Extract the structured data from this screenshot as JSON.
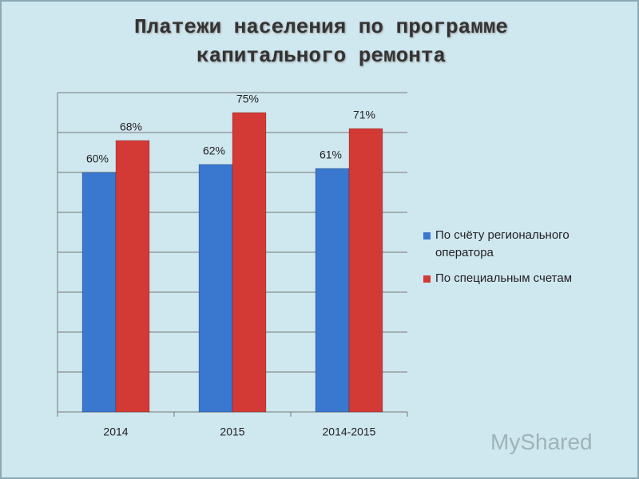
{
  "chart_data": {
    "type": "bar",
    "title": "Платежи населения по программе капитального ремонта",
    "categories": [
      "2014",
      "2015",
      "2014-2015"
    ],
    "series": [
      {
        "name": "По счёту регионального оператора",
        "color": "#3a77cf",
        "values": [
          60,
          62,
          61
        ],
        "value_labels": [
          "60%",
          "62%",
          "61%"
        ]
      },
      {
        "name": "По специальным счетам",
        "color": "#d43a35",
        "values": [
          68,
          75,
          71
        ],
        "value_labels": [
          "68%",
          "75%",
          "71%"
        ]
      }
    ],
    "ylim": [
      0,
      80
    ],
    "yticks": [
      0,
      10,
      20,
      30,
      40,
      50,
      60,
      70,
      80
    ],
    "grid": true,
    "legend": "right",
    "watermark": "MyShared"
  }
}
